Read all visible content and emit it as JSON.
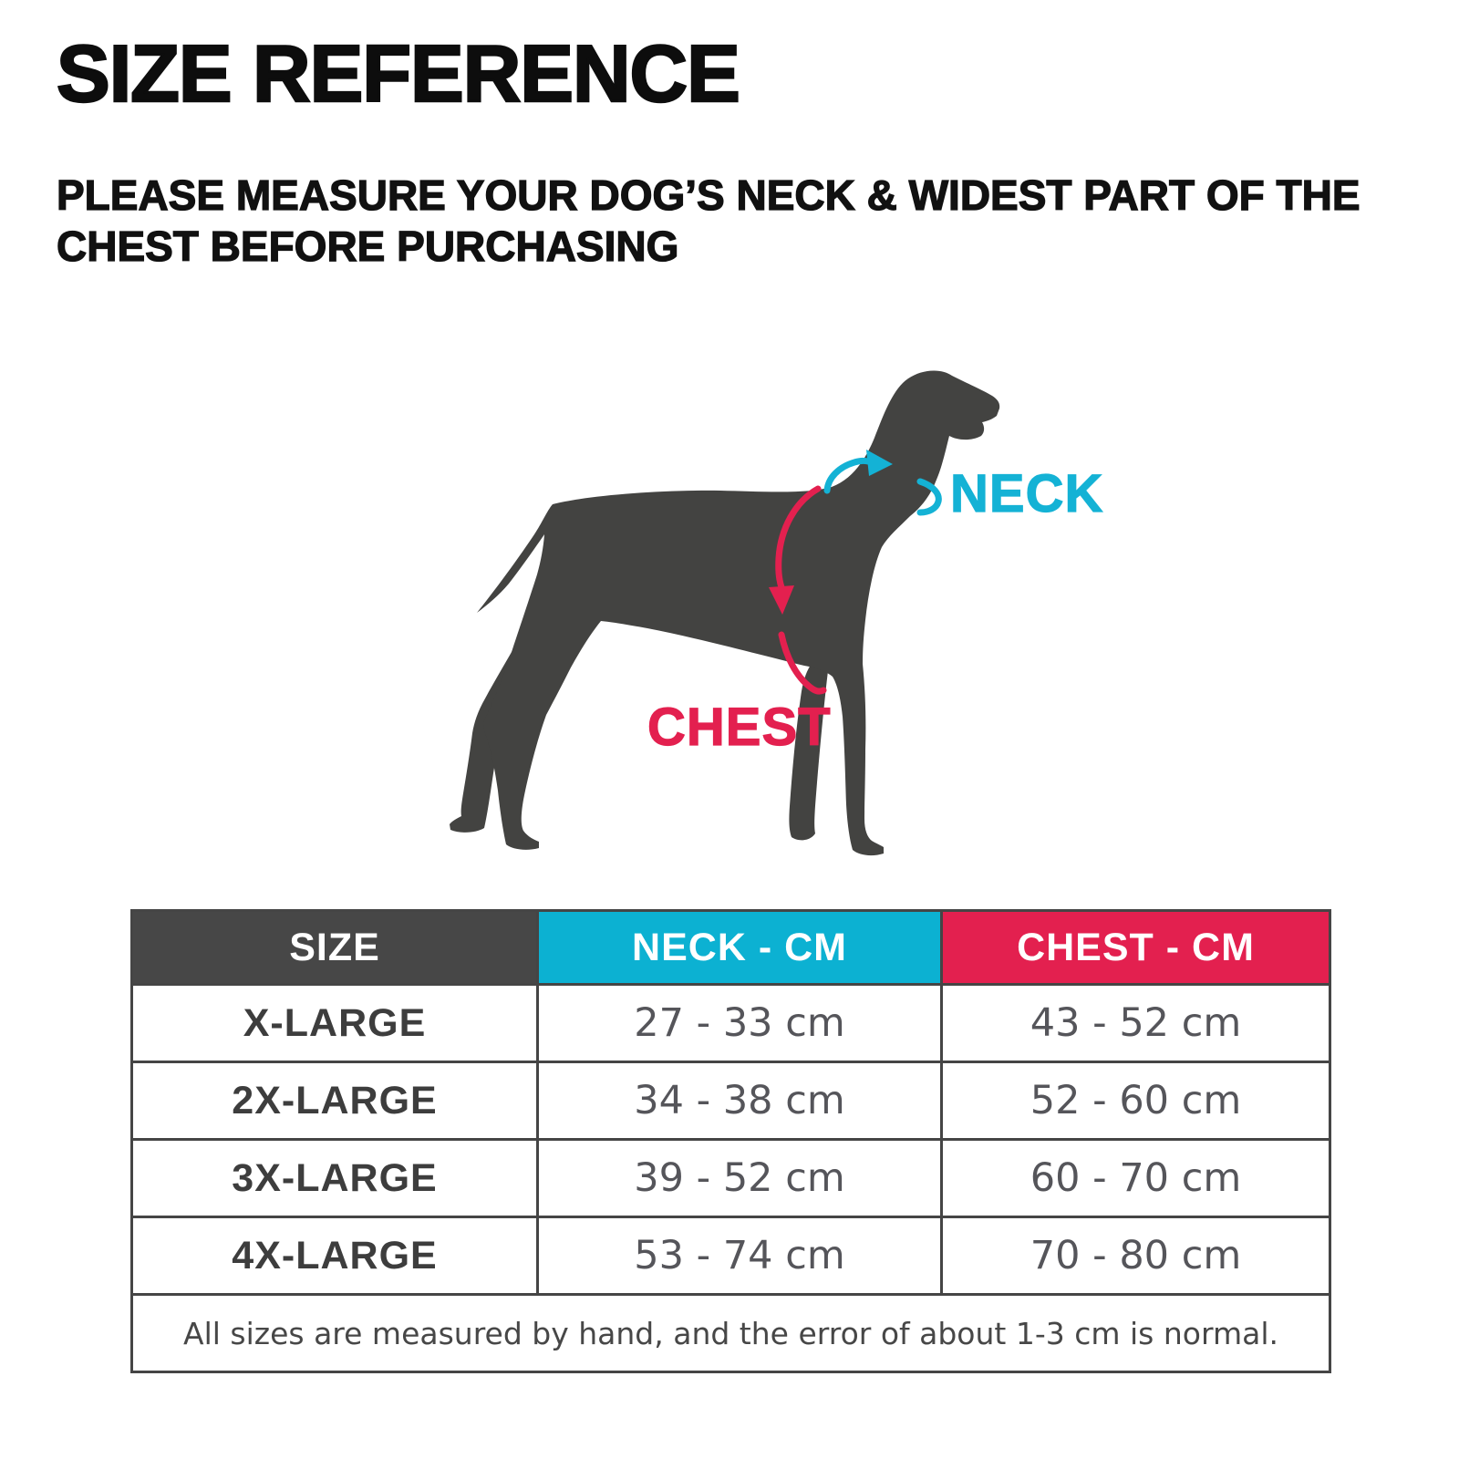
{
  "page": {
    "title": "SIZE REFERENCE",
    "instruction": "PLEASE MEASURE YOUR DOG’S NECK & WIDEST PART OF THE CHEST BEFORE PURCHASING"
  },
  "diagram": {
    "neck_label": "NECK",
    "chest_label": "CHEST",
    "neck_color": "#14b2d5",
    "chest_color": "#e3204f",
    "dog_silhouette_color": "#434341"
  },
  "table": {
    "headers": [
      {
        "label": "SIZE",
        "bg": "#474747"
      },
      {
        "label": "NECK - CM",
        "bg": "#0cb1d2"
      },
      {
        "label": "CHEST - CM",
        "bg": "#e3204f"
      }
    ],
    "rows": [
      {
        "size": "X-LARGE",
        "neck": "27 - 33 cm",
        "chest": "43 - 52 cm"
      },
      {
        "size": "2X-LARGE",
        "neck": "34 - 38 cm",
        "chest": "52 - 60 cm"
      },
      {
        "size": "3X-LARGE",
        "neck": "39 - 52 cm",
        "chest": "60 - 70 cm"
      },
      {
        "size": "4X-LARGE",
        "neck": "53 - 74 cm",
        "chest": "70 - 80 cm"
      }
    ],
    "note": "All sizes are measured by hand, and the error of about 1-3 cm is normal."
  },
  "chart_data": {
    "type": "table",
    "title": "SIZE REFERENCE",
    "columns": [
      "SIZE",
      "NECK - CM",
      "CHEST - CM"
    ],
    "rows": [
      [
        "X-LARGE",
        "27 - 33 cm",
        "43 - 52 cm"
      ],
      [
        "2X-LARGE",
        "34 - 38 cm",
        "52 - 60 cm"
      ],
      [
        "3X-LARGE",
        "39 - 52 cm",
        "60 - 70 cm"
      ],
      [
        "4X-LARGE",
        "53 - 74 cm",
        "70 - 80 cm"
      ]
    ],
    "ranges": [
      {
        "size": "X-LARGE",
        "neck_cm": [
          27,
          33
        ],
        "chest_cm": [
          43,
          52
        ]
      },
      {
        "size": "2X-LARGE",
        "neck_cm": [
          34,
          38
        ],
        "chest_cm": [
          52,
          60
        ]
      },
      {
        "size": "3X-LARGE",
        "neck_cm": [
          39,
          52
        ],
        "chest_cm": [
          60,
          70
        ]
      },
      {
        "size": "4X-LARGE",
        "neck_cm": [
          53,
          74
        ],
        "chest_cm": [
          70,
          80
        ]
      }
    ],
    "note": "All sizes are measured by hand, and the error of about 1-3 cm is normal."
  }
}
